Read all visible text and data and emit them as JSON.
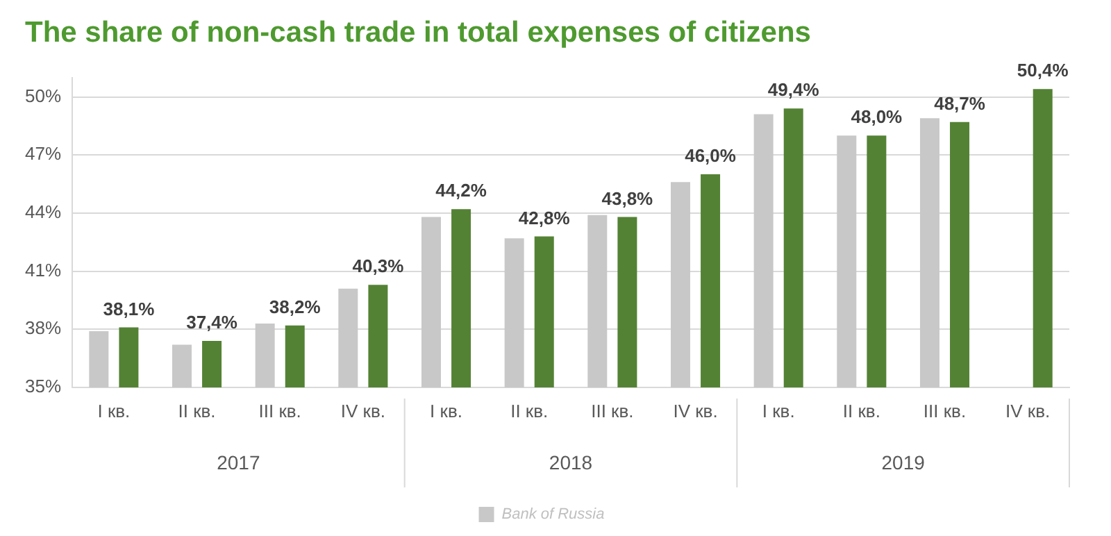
{
  "chart_data": {
    "type": "bar",
    "title": "The share of non-cash trade in total expenses of citizens",
    "categories": [
      "I кв.",
      "II кв.",
      "III кв.",
      "IV кв.",
      "I кв.",
      "II кв.",
      "III кв.",
      "IV кв.",
      "I кв.",
      "II кв.",
      "III кв.",
      "IV кв."
    ],
    "series": [
      {
        "name": "Bank of Russia",
        "color": "#c8c8c8",
        "values": [
          37.9,
          37.2,
          38.3,
          40.1,
          43.8,
          42.7,
          43.9,
          45.6,
          49.1,
          48.0,
          48.9,
          null
        ]
      },
      {
        "color": "#548235",
        "values": [
          38.1,
          37.4,
          38.2,
          40.3,
          44.2,
          42.8,
          43.8,
          46.0,
          49.4,
          48.0,
          48.7,
          50.4
        ],
        "value_labels": [
          "38,1%",
          "37,4%",
          "38,2%",
          "40,3%",
          "44,2%",
          "42,8%",
          "43,8%",
          "46,0%",
          "49,4%",
          "48,0%",
          "48,7%",
          "50,4%"
        ]
      }
    ],
    "ylim": [
      35,
      51
    ],
    "yticks": [
      {
        "value": 35,
        "label": "35%"
      },
      {
        "value": 38,
        "label": "38%"
      },
      {
        "value": 41,
        "label": "41%"
      },
      {
        "value": 44,
        "label": "44%"
      },
      {
        "value": 47,
        "label": "47%"
      },
      {
        "value": 50,
        "label": "50%"
      }
    ],
    "annotations": [
      "2017",
      "2018",
      "2019"
    ],
    "grid": "y",
    "legend": "bottom"
  }
}
